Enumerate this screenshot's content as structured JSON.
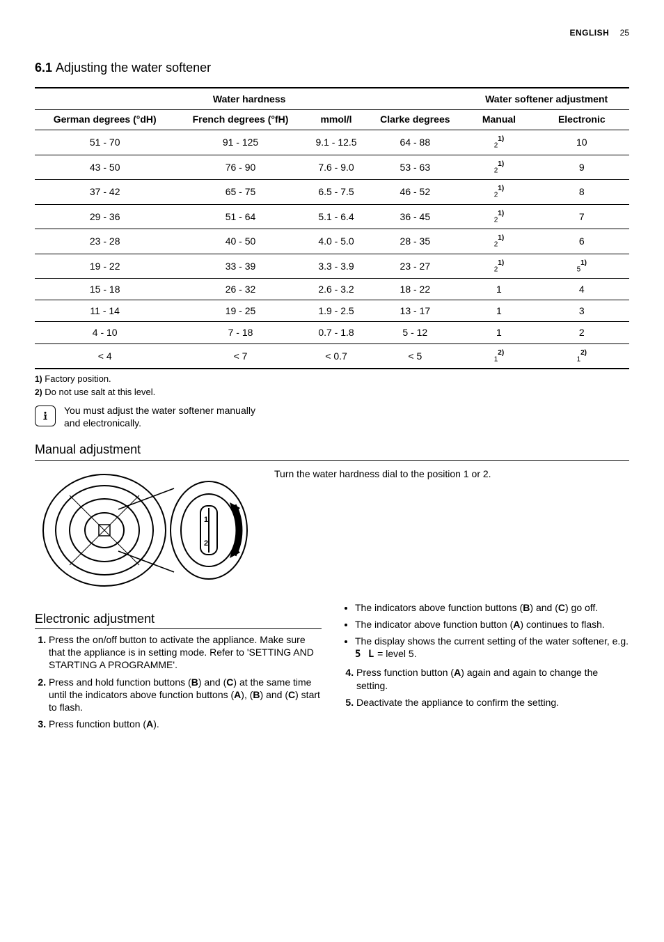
{
  "header": {
    "language": "ENGLISH",
    "page": "25"
  },
  "section": {
    "number": "6.1",
    "title": "Adjusting the water softener"
  },
  "table": {
    "group_headers": {
      "hardness": "Water hardness",
      "softener": "Water softener adjustment"
    },
    "col_headers": {
      "german": "German degrees (°dH)",
      "french": "French degrees (°fH)",
      "mmol": "mmol/l",
      "clarke": "Clarke degrees",
      "manual": "Manual",
      "electronic": "Electronic"
    },
    "rows": [
      {
        "german": "51 - 70",
        "french": "91 - 125",
        "mmol": "9.1 - 12.5",
        "clarke": "64 - 88",
        "manual_pre": "2",
        "manual_sup": "1)",
        "electronic": "10",
        "electronic_sup": ""
      },
      {
        "german": "43 - 50",
        "french": "76 - 90",
        "mmol": "7.6 - 9.0",
        "clarke": "53 - 63",
        "manual_pre": "2",
        "manual_sup": "1)",
        "electronic": "9",
        "electronic_sup": ""
      },
      {
        "german": "37 - 42",
        "french": "65 - 75",
        "mmol": "6.5 - 7.5",
        "clarke": "46 - 52",
        "manual_pre": "2",
        "manual_sup": "1)",
        "electronic": "8",
        "electronic_sup": ""
      },
      {
        "german": "29 - 36",
        "french": "51 - 64",
        "mmol": "5.1 - 6.4",
        "clarke": "36 - 45",
        "manual_pre": "2",
        "manual_sup": "1)",
        "electronic": "7",
        "electronic_sup": ""
      },
      {
        "german": "23 - 28",
        "french": "40 - 50",
        "mmol": "4.0 - 5.0",
        "clarke": "28 - 35",
        "manual_pre": "2",
        "manual_sup": "1)",
        "electronic": "6",
        "electronic_sup": ""
      },
      {
        "german": "19 - 22",
        "french": "33 - 39",
        "mmol": "3.3 - 3.9",
        "clarke": "23 - 27",
        "manual_pre": "2",
        "manual_sup": "1)",
        "electronic": "5",
        "electronic_sup": "1)"
      },
      {
        "german": "15 - 18",
        "french": "26 - 32",
        "mmol": "2.6 - 3.2",
        "clarke": "18 - 22",
        "manual_pre": "1",
        "manual_sup": "",
        "electronic": "4",
        "electronic_sup": ""
      },
      {
        "german": "11 - 14",
        "french": "19 - 25",
        "mmol": "1.9 - 2.5",
        "clarke": "13 - 17",
        "manual_pre": "1",
        "manual_sup": "",
        "electronic": "3",
        "electronic_sup": ""
      },
      {
        "german": "4 - 10",
        "french": "7 - 18",
        "mmol": "0.7 - 1.8",
        "clarke": "5 - 12",
        "manual_pre": "1",
        "manual_sup": "",
        "electronic": "2",
        "electronic_sup": ""
      },
      {
        "german": "< 4",
        "french": "< 7",
        "mmol": "< 0.7",
        "clarke": "< 5",
        "manual_pre": "1",
        "manual_sup": "2)",
        "electronic": "1",
        "electronic_sup": "2)"
      }
    ]
  },
  "footnotes": {
    "f1_mark": "1)",
    "f1_text": "Factory position.",
    "f2_mark": "2)",
    "f2_text": "Do not use salt at this level."
  },
  "info_note": "You must adjust the water softener manually and electronically.",
  "manual": {
    "heading": "Manual adjustment",
    "text": "Turn the water hardness dial to the position 1 or 2."
  },
  "electronic": {
    "heading": "Electronic adjustment",
    "step1": "Press the on/off button to activate the appliance. Make sure that the appliance is in setting mode. Refer to 'SETTING AND STARTING A PROGRAMME'.",
    "step2_a": "Press and hold function buttons (",
    "step2_b": ") and (",
    "step2_c": ") at the same time until the indicators above function buttons (",
    "step2_d": "), (",
    "step2_e": ") and (",
    "step2_f": ") start to flash.",
    "step3_a": "Press function button (",
    "step3_b": ").",
    "bul1_a": "The indicators above function buttons (",
    "bul1_b": ") and (",
    "bul1_c": ") go off.",
    "bul2_a": "The indicator above function button (",
    "bul2_b": ") continues to flash.",
    "bul3_a": "The display shows the current setting of the water softener, e.g. ",
    "bul3_seg": "5 L",
    "bul3_b": " = level 5.",
    "step4_a": "Press function button (",
    "step4_b": ") again and again to change the setting.",
    "step5": "Deactivate the appliance to confirm the setting.",
    "A": "A",
    "B": "B",
    "C": "C"
  }
}
